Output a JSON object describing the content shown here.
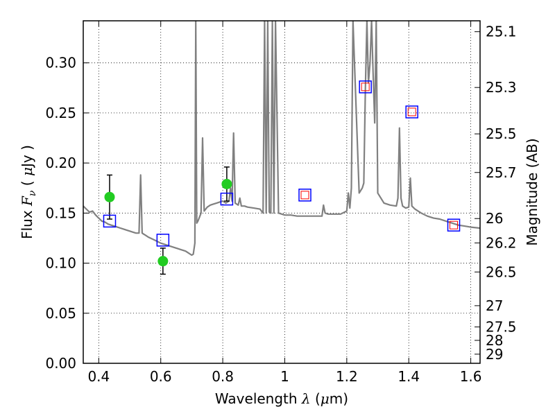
{
  "chart_data": {
    "type": "line",
    "xlabel": "Wavelength  λ (μm)",
    "ylabel": "Flux  Fν  ( μJy )",
    "y2label": "Magnitude (AB)",
    "xlim": [
      0.35,
      1.63
    ],
    "ylim": [
      0.0,
      0.342
    ],
    "grid": true,
    "x_ticks": [
      0.4,
      0.6,
      0.8,
      1.0,
      1.2,
      1.4,
      1.6
    ],
    "x_tick_labels": [
      "0.4",
      "0.6",
      "0.8",
      "1",
      "1.2",
      "1.4",
      "1.6"
    ],
    "y_ticks": [
      0.0,
      0.05,
      0.1,
      0.15,
      0.2,
      0.25,
      0.3
    ],
    "y_tick_labels": [
      "0.00",
      "0.05",
      "0.10",
      "0.15",
      "0.20",
      "0.25",
      "0.30"
    ],
    "mag_ticks": [
      "25.1",
      "25.3",
      "25.5",
      "25.7",
      "26",
      "26.2",
      "26.5",
      "27",
      "27.5",
      "28",
      "29"
    ],
    "colors": {
      "spectrum": "#808080",
      "observed": "#22cc22",
      "model": "#0000ff",
      "model_inner": "#ff0000",
      "errorbar": "#000000"
    },
    "series": [
      {
        "kind": "spectrum",
        "x": [
          0.35,
          0.36,
          0.37,
          0.38,
          0.39,
          0.4,
          0.41,
          0.42,
          0.43,
          0.44,
          0.45,
          0.46,
          0.47,
          0.48,
          0.49,
          0.5,
          0.51,
          0.52,
          0.53,
          0.535,
          0.54,
          0.545,
          0.55,
          0.56,
          0.58,
          0.6,
          0.62,
          0.64,
          0.66,
          0.68,
          0.69,
          0.7,
          0.705,
          0.71,
          0.713,
          0.716,
          0.72,
          0.725,
          0.73,
          0.735,
          0.74,
          0.745,
          0.75,
          0.76,
          0.77,
          0.78,
          0.79,
          0.8,
          0.81,
          0.82,
          0.825,
          0.83,
          0.835,
          0.84,
          0.85,
          0.855,
          0.86,
          0.87,
          0.88,
          0.9,
          0.92,
          0.93,
          0.935,
          0.94,
          0.945,
          0.95,
          0.955,
          0.96,
          0.965,
          0.97,
          0.98,
          1.0,
          1.02,
          1.04,
          1.06,
          1.08,
          1.1,
          1.12,
          1.125,
          1.13,
          1.14,
          1.16,
          1.18,
          1.2,
          1.205,
          1.21,
          1.215,
          1.22,
          1.24,
          1.25,
          1.255,
          1.26,
          1.265,
          1.27,
          1.275,
          1.28,
          1.285,
          1.29,
          1.295,
          1.3,
          1.32,
          1.34,
          1.36,
          1.365,
          1.37,
          1.375,
          1.38,
          1.39,
          1.4,
          1.405,
          1.41,
          1.42,
          1.44,
          1.46,
          1.48,
          1.5,
          1.52,
          1.54,
          1.56,
          1.58,
          1.6,
          1.63
        ],
        "y": [
          0.157,
          0.154,
          0.151,
          0.152,
          0.148,
          0.145,
          0.142,
          0.141,
          0.139,
          0.138,
          0.137,
          0.136,
          0.135,
          0.134,
          0.133,
          0.132,
          0.131,
          0.13,
          0.13,
          0.188,
          0.13,
          0.129,
          0.128,
          0.126,
          0.123,
          0.12,
          0.118,
          0.116,
          0.114,
          0.112,
          0.11,
          0.108,
          0.109,
          0.12,
          0.342,
          0.14,
          0.142,
          0.146,
          0.15,
          0.225,
          0.152,
          0.154,
          0.156,
          0.158,
          0.159,
          0.16,
          0.161,
          0.162,
          0.16,
          0.162,
          0.175,
          0.162,
          0.23,
          0.16,
          0.158,
          0.165,
          0.157,
          0.157,
          0.156,
          0.155,
          0.154,
          0.15,
          0.342,
          0.15,
          0.342,
          0.151,
          0.15,
          0.342,
          0.15,
          0.342,
          0.15,
          0.148,
          0.148,
          0.147,
          0.147,
          0.147,
          0.147,
          0.147,
          0.158,
          0.15,
          0.149,
          0.149,
          0.149,
          0.152,
          0.17,
          0.155,
          0.175,
          0.342,
          0.17,
          0.175,
          0.18,
          0.275,
          0.342,
          0.28,
          0.3,
          0.342,
          0.29,
          0.24,
          0.342,
          0.17,
          0.16,
          0.158,
          0.157,
          0.165,
          0.235,
          0.165,
          0.157,
          0.155,
          0.156,
          0.185,
          0.157,
          0.154,
          0.15,
          0.147,
          0.145,
          0.144,
          0.142,
          0.14,
          0.138,
          0.137,
          0.136,
          0.135
        ]
      },
      {
        "kind": "observed",
        "x": [
          0.435,
          0.607,
          0.813
        ],
        "y": [
          0.166,
          0.102,
          0.179
        ],
        "err": [
          0.022,
          0.013,
          0.017
        ]
      },
      {
        "kind": "model",
        "x": [
          0.435,
          0.607,
          0.813,
          1.065,
          1.26,
          1.41,
          1.545
        ],
        "y": [
          0.142,
          0.123,
          0.164,
          0.168,
          0.276,
          0.251,
          0.138
        ],
        "inner": [
          false,
          false,
          false,
          true,
          true,
          true,
          true
        ]
      }
    ]
  }
}
